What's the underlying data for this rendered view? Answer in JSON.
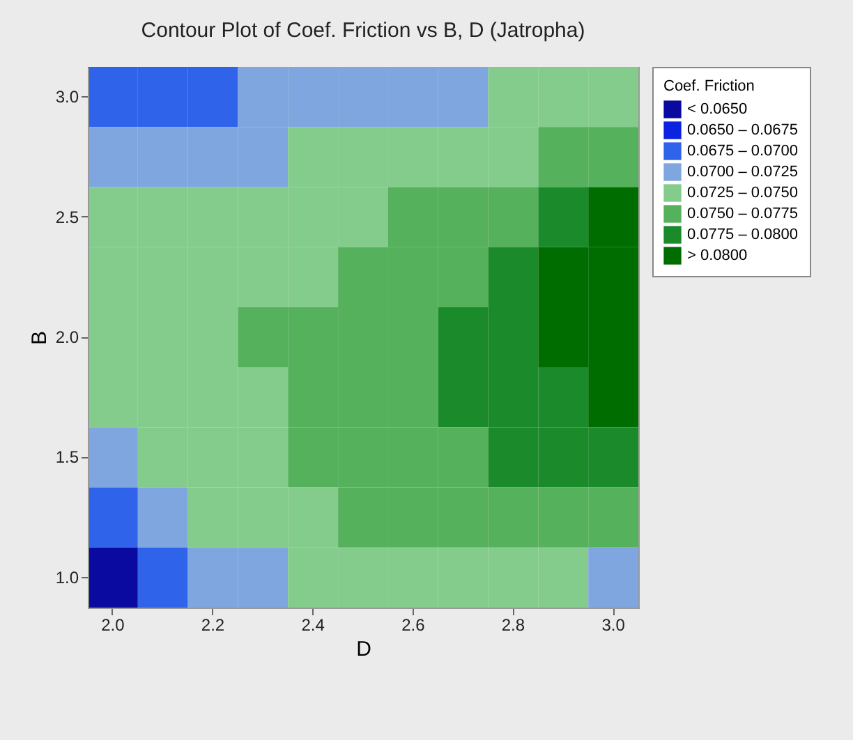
{
  "chart_data": {
    "type": "heatmap",
    "title": "Contour Plot of Coef. Friction vs B, D (Jatropha)",
    "xlabel": "D",
    "ylabel": "B",
    "legend_title": "Coef. Friction",
    "grid": false,
    "categories": [
      "2.0",
      null,
      "2.2",
      null,
      "2.4",
      null,
      "2.6",
      null,
      "2.8",
      null,
      "3.0"
    ],
    "y_categories": [
      "3.0",
      null,
      "2.5",
      null,
      "2.0",
      null,
      "1.5",
      null,
      "1.0"
    ],
    "clim": [
      0.0625,
      0.0825
    ],
    "cticks": [
      {
        "value": 0.06375,
        "label": "< 0.0650"
      },
      {
        "value": 0.06625,
        "label": "0.0650 – 0.0675"
      },
      {
        "value": 0.06875,
        "label": "0.0675 – 0.0700"
      },
      {
        "value": 0.07125,
        "label": "0.0700 – 0.0725"
      },
      {
        "value": 0.07375,
        "label": "0.0725 – 0.0750"
      },
      {
        "value": 0.07625,
        "label": "0.0750 – 0.0775"
      },
      {
        "value": 0.07875,
        "label": "0.0775 – 0.0800"
      },
      {
        "value": 0.08125,
        "label": "> 0.0800"
      }
    ],
    "colors": [
      "#0a0aa0",
      "#0b22e0",
      "#2f63ea",
      "#7fa6df",
      "#84cc8c",
      "#55b15c",
      "#1b8a2a",
      "#006d00"
    ],
    "cells": [
      [
        0.06875,
        0.06875,
        0.06875,
        0.07125,
        0.07125,
        0.07125,
        0.07125,
        0.07125,
        0.07375,
        0.07375,
        0.07375
      ],
      [
        0.07125,
        0.07125,
        0.07125,
        0.07125,
        0.07375,
        0.07375,
        0.07375,
        0.07375,
        0.07375,
        0.07625,
        0.07625
      ],
      [
        0.07375,
        0.07375,
        0.07375,
        0.07375,
        0.07375,
        0.07375,
        0.07625,
        0.07625,
        0.07625,
        0.07875,
        0.08125
      ],
      [
        0.07375,
        0.07375,
        0.07375,
        0.07375,
        0.07375,
        0.07625,
        0.07625,
        0.07625,
        0.07875,
        0.08125,
        0.08125
      ],
      [
        0.07375,
        0.07375,
        0.07375,
        0.07625,
        0.07625,
        0.07625,
        0.07625,
        0.07875,
        0.07875,
        0.08125,
        0.08125
      ],
      [
        0.07375,
        0.07375,
        0.07375,
        0.07375,
        0.07625,
        0.07625,
        0.07625,
        0.07875,
        0.07875,
        0.07875,
        0.08125
      ],
      [
        0.07125,
        0.07375,
        0.07375,
        0.07375,
        0.07625,
        0.07625,
        0.07625,
        0.07625,
        0.07875,
        0.07875,
        0.07875
      ],
      [
        0.06875,
        0.07125,
        0.07375,
        0.07375,
        0.07375,
        0.07625,
        0.07625,
        0.07625,
        0.07625,
        0.07625,
        0.07625
      ],
      [
        0.06375,
        0.06875,
        0.07125,
        0.07125,
        0.07375,
        0.07375,
        0.07375,
        0.07375,
        0.07375,
        0.07375,
        0.07125
      ]
    ]
  }
}
